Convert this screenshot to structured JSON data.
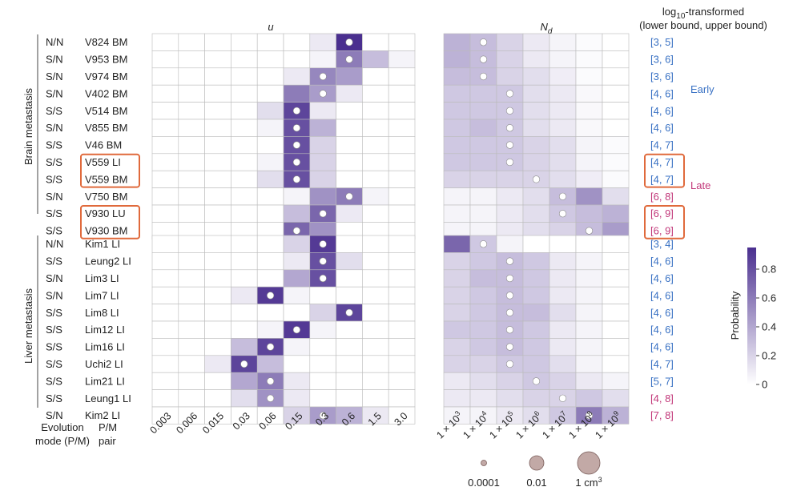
{
  "chart_data": {
    "type": "heatmap",
    "panel_titles": {
      "u": "u",
      "nd_main": "N",
      "nd_sub": "d"
    },
    "range_header": {
      "line1_prefix": "log",
      "line1_sub": "10",
      "line1_suffix": "-transformed",
      "line2": "(lower bound, upper bound)"
    },
    "group_labels": [
      "Brain metastasis",
      "Liver metastasis"
    ],
    "annotations": {
      "early": "Early",
      "late": "Late"
    },
    "colorbar": {
      "label": "Probability",
      "ticks": [
        "0.8",
        "0.6",
        "0.4",
        "0.2",
        "0"
      ],
      "tick_values": [
        0.8,
        0.6,
        0.4,
        0.2,
        0
      ],
      "range": [
        0,
        0.95
      ]
    },
    "colors": {
      "dark": "#4a2f8f",
      "early": "#3a72c4",
      "late": "#c2387a",
      "highlight": "#e06a3c",
      "grid": "#bbbbbb"
    },
    "axis_footer": {
      "mode_line1": "Evolution",
      "mode_line2": "mode (P/M)",
      "pair_line1": "P/M",
      "pair_line2": "pair"
    },
    "u_ticks": [
      "0.003",
      "0.006",
      "0.015",
      "0.03",
      "0.06",
      "0.15",
      "0.3",
      "0.6",
      "1.5",
      "3.0"
    ],
    "nd_ticks": [
      {
        "base": "1 × 10",
        "exp": "3"
      },
      {
        "base": "1 × 10",
        "exp": "4"
      },
      {
        "base": "1 × 10",
        "exp": "5"
      },
      {
        "base": "1 × 10",
        "exp": "6"
      },
      {
        "base": "1 × 10",
        "exp": "7"
      },
      {
        "base": "1 × 10",
        "exp": "8"
      },
      {
        "base": "1 × 10",
        "exp": "9"
      }
    ],
    "size_legend": [
      {
        "label": "0.0001",
        "value": 0.0001
      },
      {
        "label": "0.01",
        "value": 0.01
      },
      {
        "label": "1 cm",
        "sup": "3",
        "value": 1
      }
    ],
    "groups": [
      {
        "rows": [
          {
            "mode": "N/N",
            "pair": "V824 BM",
            "range": "[3, 5]",
            "period": "early",
            "highlight": false,
            "u": [
              0,
              0,
              0,
              0,
              0,
              0,
              0.1,
              0.95,
              0,
              0
            ],
            "u_dot": 7,
            "nd": [
              0.35,
              0.3,
              0.2,
              0.1,
              0.05,
              0.02,
              0
            ],
            "nd_dot": 1
          },
          {
            "mode": "S/N",
            "pair": "V953 BM",
            "range": "[3, 6]",
            "period": "early",
            "highlight": false,
            "u": [
              0,
              0,
              0,
              0,
              0,
              0,
              0.05,
              0.6,
              0.3,
              0.05
            ],
            "u_dot": 7,
            "nd": [
              0.35,
              0.3,
              0.2,
              0.1,
              0.05,
              0.02,
              0
            ],
            "nd_dot": 1
          },
          {
            "mode": "S/N",
            "pair": "V974 BM",
            "range": "[3, 6]",
            "period": "early",
            "highlight": false,
            "u": [
              0,
              0,
              0,
              0,
              0,
              0.1,
              0.55,
              0.45,
              0,
              0
            ],
            "u_dot": 6,
            "nd": [
              0.3,
              0.3,
              0.2,
              0.15,
              0.08,
              0.02,
              0
            ],
            "nd_dot": 1
          },
          {
            "mode": "S/N",
            "pair": "V402 BM",
            "range": "[4, 6]",
            "period": "early",
            "highlight": false,
            "u": [
              0,
              0,
              0,
              0,
              0,
              0.6,
              0.45,
              0.1,
              0,
              0
            ],
            "u_dot": 6,
            "nd": [
              0.25,
              0.25,
              0.25,
              0.15,
              0.1,
              0.03,
              0
            ],
            "nd_dot": 2
          },
          {
            "mode": "S/S",
            "pair": "V514 BM",
            "range": "[4, 6]",
            "period": "early",
            "highlight": false,
            "u": [
              0,
              0,
              0,
              0,
              0.15,
              0.85,
              0.1,
              0,
              0,
              0
            ],
            "u_dot": 5,
            "nd": [
              0.25,
              0.25,
              0.25,
              0.15,
              0.1,
              0.03,
              0
            ],
            "nd_dot": 2
          },
          {
            "mode": "S/N",
            "pair": "V855 BM",
            "range": "[4, 6]",
            "period": "early",
            "highlight": false,
            "u": [
              0,
              0,
              0,
              0,
              0.05,
              0.8,
              0.35,
              0,
              0,
              0
            ],
            "u_dot": 5,
            "nd": [
              0.25,
              0.3,
              0.25,
              0.15,
              0.1,
              0.03,
              0
            ],
            "nd_dot": 2
          },
          {
            "mode": "S/S",
            "pair": "V46 BM",
            "range": "[4, 7]",
            "period": "early",
            "highlight": false,
            "u": [
              0,
              0,
              0,
              0,
              0,
              0.8,
              0.2,
              0,
              0,
              0
            ],
            "u_dot": 5,
            "nd": [
              0.25,
              0.25,
              0.25,
              0.2,
              0.15,
              0.05,
              0.02
            ],
            "nd_dot": 2
          },
          {
            "mode": "S/S",
            "pair": "V559 LI",
            "range": "[4, 7]",
            "period": "early",
            "highlight": true,
            "u": [
              0,
              0,
              0,
              0,
              0.05,
              0.8,
              0.2,
              0,
              0,
              0
            ],
            "u_dot": 5,
            "nd": [
              0.25,
              0.25,
              0.25,
              0.2,
              0.15,
              0.05,
              0.02
            ],
            "nd_dot": 2
          },
          {
            "mode": "S/S",
            "pair": "V559 BM",
            "range": "[4, 7]",
            "period": "early",
            "highlight": true,
            "u": [
              0,
              0,
              0,
              0,
              0.15,
              0.8,
              0.2,
              0,
              0,
              0
            ],
            "u_dot": 5,
            "nd": [
              0.2,
              0.2,
              0.2,
              0.2,
              0.15,
              0.08,
              0.02
            ],
            "nd_dot": 3
          },
          {
            "mode": "S/N",
            "pair": "V750 BM",
            "range": "[6, 8]",
            "period": "late",
            "highlight": false,
            "u": [
              0,
              0,
              0,
              0,
              0,
              0.05,
              0.5,
              0.6,
              0.05,
              0
            ],
            "u_dot": 7,
            "nd": [
              0.05,
              0.05,
              0.1,
              0.15,
              0.3,
              0.5,
              0.15
            ],
            "nd_dot": 4
          },
          {
            "mode": "S/S",
            "pair": "V930 LU",
            "range": "[6, 9]",
            "period": "late",
            "highlight": true,
            "u": [
              0,
              0,
              0,
              0,
              0,
              0.3,
              0.7,
              0.1,
              0,
              0
            ],
            "u_dot": 6,
            "nd": [
              0.05,
              0.05,
              0.1,
              0.15,
              0.25,
              0.3,
              0.35
            ],
            "nd_dot": 4
          },
          {
            "mode": "S/S",
            "pair": "V930 BM",
            "range": "[6, 9]",
            "period": "late",
            "highlight": true,
            "u": [
              0,
              0,
              0,
              0,
              0,
              0.7,
              0.5,
              0,
              0,
              0
            ],
            "u_dot": 5,
            "nd": [
              0.05,
              0.05,
              0.1,
              0.15,
              0.2,
              0.3,
              0.45
            ],
            "nd_dot": 5
          }
        ]
      },
      {
        "rows": [
          {
            "mode": "N/N",
            "pair": "Kim1 LI",
            "range": "[3, 4]",
            "period": "early",
            "highlight": false,
            "u": [
              0,
              0,
              0,
              0,
              0,
              0.2,
              0.9,
              0,
              0,
              0
            ],
            "u_dot": 6,
            "nd": [
              0.7,
              0.25,
              0.05,
              0,
              0,
              0,
              0
            ],
            "nd_dot": 1
          },
          {
            "mode": "S/S",
            "pair": "Leung2 LI",
            "range": "[4, 6]",
            "period": "early",
            "highlight": false,
            "u": [
              0,
              0,
              0,
              0,
              0,
              0.1,
              0.8,
              0.15,
              0,
              0
            ],
            "u_dot": 6,
            "nd": [
              0.2,
              0.25,
              0.3,
              0.25,
              0.1,
              0.05,
              0
            ],
            "nd_dot": 2
          },
          {
            "mode": "S/N",
            "pair": "Lim3 LI",
            "range": "[4, 6]",
            "period": "early",
            "highlight": false,
            "u": [
              0,
              0,
              0,
              0,
              0,
              0.4,
              0.8,
              0,
              0,
              0
            ],
            "u_dot": 6,
            "nd": [
              0.2,
              0.3,
              0.3,
              0.25,
              0.1,
              0.05,
              0
            ],
            "nd_dot": 2
          },
          {
            "mode": "S/N",
            "pair": "Lim7 LI",
            "range": "[4, 6]",
            "period": "early",
            "highlight": false,
            "u": [
              0,
              0,
              0,
              0.1,
              0.9,
              0.05,
              0,
              0,
              0,
              0
            ],
            "u_dot": 4,
            "nd": [
              0.2,
              0.25,
              0.3,
              0.25,
              0.1,
              0.05,
              0
            ],
            "nd_dot": 2
          },
          {
            "mode": "S/S",
            "pair": "Lim8 LI",
            "range": "[4, 6]",
            "period": "early",
            "highlight": false,
            "u": [
              0,
              0,
              0,
              0,
              0,
              0,
              0.2,
              0.85,
              0,
              0
            ],
            "u_dot": 7,
            "nd": [
              0.2,
              0.25,
              0.3,
              0.3,
              0.15,
              0.05,
              0
            ],
            "nd_dot": 2
          },
          {
            "mode": "S/S",
            "pair": "Lim12 LI",
            "range": "[4, 6]",
            "period": "early",
            "highlight": false,
            "u": [
              0,
              0,
              0,
              0,
              0.05,
              0.9,
              0.05,
              0,
              0,
              0
            ],
            "u_dot": 5,
            "nd": [
              0.25,
              0.25,
              0.3,
              0.25,
              0.1,
              0.05,
              0
            ],
            "nd_dot": 2
          },
          {
            "mode": "S/S",
            "pair": "Lim16 LI",
            "range": "[4, 6]",
            "period": "early",
            "highlight": false,
            "u": [
              0,
              0,
              0,
              0.3,
              0.85,
              0.05,
              0,
              0,
              0,
              0
            ],
            "u_dot": 4,
            "nd": [
              0.2,
              0.25,
              0.3,
              0.25,
              0.1,
              0.05,
              0
            ],
            "nd_dot": 2
          },
          {
            "mode": "S/S",
            "pair": "Uchi2 LI",
            "range": "[4, 7]",
            "period": "early",
            "highlight": false,
            "u": [
              0,
              0,
              0.1,
              0.85,
              0.3,
              0,
              0,
              0,
              0,
              0
            ],
            "u_dot": 3,
            "nd": [
              0.2,
              0.2,
              0.25,
              0.25,
              0.15,
              0.05,
              0
            ],
            "nd_dot": 2
          },
          {
            "mode": "S/S",
            "pair": "Lim21 LI",
            "range": "[5, 7]",
            "period": "early",
            "highlight": false,
            "u": [
              0,
              0,
              0,
              0.4,
              0.6,
              0.1,
              0,
              0,
              0,
              0
            ],
            "u_dot": 4,
            "nd": [
              0.1,
              0.15,
              0.2,
              0.25,
              0.2,
              0.1,
              0.05
            ],
            "nd_dot": 3
          },
          {
            "mode": "S/S",
            "pair": "Leung1 LI",
            "range": "[4, 8]",
            "period": "late",
            "highlight": false,
            "u": [
              0,
              0,
              0,
              0.15,
              0.5,
              0.1,
              0,
              0,
              0,
              0
            ],
            "u_dot": 4,
            "nd": [
              0.1,
              0.1,
              0.15,
              0.2,
              0.2,
              0.25,
              0.15
            ],
            "nd_dot": 4
          },
          {
            "mode": "S/N",
            "pair": "Kim2 LI",
            "range": "[7, 8]",
            "period": "late",
            "highlight": false,
            "u": [
              0,
              0,
              0,
              0,
              0,
              0.2,
              0.45,
              0.35,
              0.1,
              0
            ],
            "u_dot": 6,
            "nd": [
              0.05,
              0.05,
              0.1,
              0.15,
              0.25,
              0.6,
              0.35
            ],
            "nd_dot": 5
          }
        ]
      }
    ]
  }
}
